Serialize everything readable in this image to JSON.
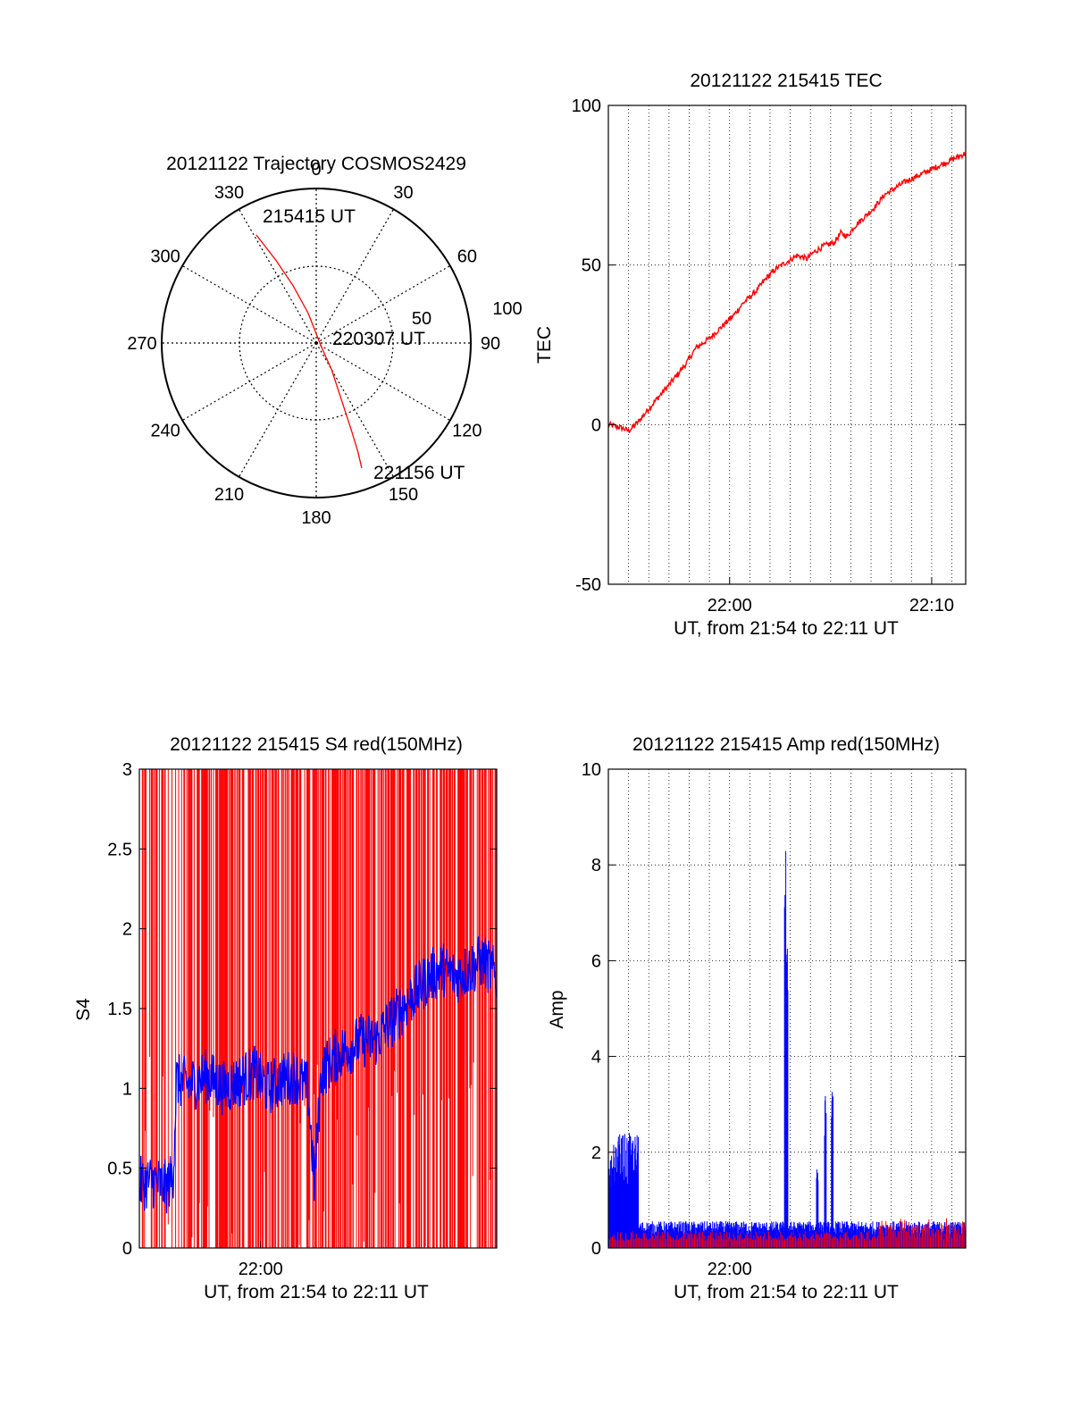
{
  "chart_data": [
    {
      "type": "polar",
      "title": "20121122 Trajectory COSMOS2429",
      "azimuth_labels": [
        "0",
        "30",
        "60",
        "90",
        "120",
        "150",
        "180",
        "210",
        "240",
        "270",
        "300",
        "330"
      ],
      "radial_labels": [
        "50",
        "100"
      ],
      "rlim": [
        0,
        100
      ],
      "series": [
        {
          "color": "#ff0000",
          "points": [
            {
              "az": 331,
              "r": 80
            },
            {
              "az": 334,
              "r": 60
            },
            {
              "az": 338,
              "r": 40
            },
            {
              "az": 345,
              "r": 20
            },
            {
              "az": 0,
              "r": 6
            },
            {
              "az": 132,
              "r": 5
            },
            {
              "az": 150,
              "r": 20
            },
            {
              "az": 156,
              "r": 40
            },
            {
              "az": 158,
              "r": 60
            },
            {
              "az": 159,
              "r": 75
            },
            {
              "az": 160,
              "r": 86
            }
          ]
        }
      ],
      "annotations": [
        "215415 UT",
        "220307 UT",
        "221156 UT"
      ]
    },
    {
      "type": "line",
      "title": "20121122 215415 TEC",
      "xlabel": "UT, from 21:54 to 22:11 UT",
      "ylabel": "TEC",
      "xlim": [
        0,
        1061
      ],
      "ylim": [
        -50,
        100
      ],
      "xticks": [
        {
          "x": 360,
          "label": "22:00"
        },
        {
          "x": 960,
          "label": "22:10"
        }
      ],
      "yticks": [
        -50,
        0,
        50,
        100
      ],
      "grid": true,
      "series": [
        {
          "color": "#ff0000",
          "points": [
            [
              0,
              0
            ],
            [
              40,
              -1
            ],
            [
              60,
              -2
            ],
            [
              90,
              1
            ],
            [
              120,
              5
            ],
            [
              160,
              10
            ],
            [
              200,
              15
            ],
            [
              230,
              19
            ],
            [
              260,
              24
            ],
            [
              300,
              27
            ],
            [
              340,
              31
            ],
            [
              370,
              34
            ],
            [
              400,
              38
            ],
            [
              440,
              42
            ],
            [
              470,
              46
            ],
            [
              500,
              49
            ],
            [
              530,
              51
            ],
            [
              560,
              53
            ],
            [
              590,
              52
            ],
            [
              610,
              54
            ],
            [
              640,
              56
            ],
            [
              670,
              57
            ],
            [
              690,
              60
            ],
            [
              710,
              59
            ],
            [
              730,
              62
            ],
            [
              760,
              65
            ],
            [
              790,
              68
            ],
            [
              820,
              72
            ],
            [
              850,
              74
            ],
            [
              880,
              76
            ],
            [
              900,
              77
            ],
            [
              940,
              79
            ],
            [
              980,
              81
            ],
            [
              1020,
              83
            ],
            [
              1061,
              85
            ]
          ]
        }
      ]
    },
    {
      "type": "line",
      "title": "20121122 215415 S4 red(150MHz)",
      "xlabel": "UT, from 21:54 to 22:11 UT",
      "ylabel": "S4",
      "xlim": [
        0,
        1061
      ],
      "ylim": [
        0,
        3
      ],
      "xticks": [
        {
          "x": 360,
          "label": "22:00"
        }
      ],
      "yticks": [
        "0",
        "0.5",
        "1",
        "1.5",
        "2",
        "2.5",
        "3"
      ],
      "grid": false,
      "series": [
        {
          "name": "red",
          "color": "#ff0000",
          "style": "vertical spikes spanning 0 to 3 across most of the interval"
        },
        {
          "name": "blue",
          "color": "#0000ff",
          "points": [
            [
              0,
              0.4
            ],
            [
              40,
              0.42
            ],
            [
              80,
              0.38
            ],
            [
              100,
              0.45
            ],
            [
              110,
              1.05
            ],
            [
              150,
              1.02
            ],
            [
              200,
              1.08
            ],
            [
              250,
              1.0
            ],
            [
              300,
              1.05
            ],
            [
              340,
              1.1
            ],
            [
              380,
              1.0
            ],
            [
              420,
              1.05
            ],
            [
              460,
              1.08
            ],
            [
              500,
              1.0
            ],
            [
              520,
              0.4
            ],
            [
              540,
              1.1
            ],
            [
              580,
              1.2
            ],
            [
              620,
              1.25
            ],
            [
              660,
              1.3
            ],
            [
              700,
              1.3
            ],
            [
              740,
              1.4
            ],
            [
              780,
              1.5
            ],
            [
              820,
              1.6
            ],
            [
              860,
              1.7
            ],
            [
              900,
              1.75
            ],
            [
              940,
              1.7
            ],
            [
              980,
              1.75
            ],
            [
              1020,
              1.8
            ],
            [
              1061,
              1.7
            ]
          ]
        }
      ]
    },
    {
      "type": "line",
      "title": "20121122 215415 Amp red(150MHz)",
      "xlabel": "UT, from 21:54 to 22:11 UT",
      "ylabel": "Amp",
      "xlim": [
        0,
        1061
      ],
      "ylim": [
        0,
        10
      ],
      "xticks": [
        {
          "x": 360,
          "label": "22:00"
        }
      ],
      "yticks": [
        "0",
        "2",
        "4",
        "6",
        "8",
        "10"
      ],
      "grid": true,
      "series": [
        {
          "name": "blue",
          "color": "#0000ff",
          "baseline": 0.35,
          "spikes": [
            {
              "x": 30,
              "value": 2.5
            },
            {
              "x": 525,
              "value": 8.4
            },
            {
              "x": 530,
              "value": 6.9
            },
            {
              "x": 620,
              "value": 1.8
            },
            {
              "x": 645,
              "value": 3.2
            },
            {
              "x": 665,
              "value": 3.3
            }
          ]
        },
        {
          "name": "red",
          "color": "#ff0000",
          "baseline": 0.15
        }
      ]
    }
  ]
}
